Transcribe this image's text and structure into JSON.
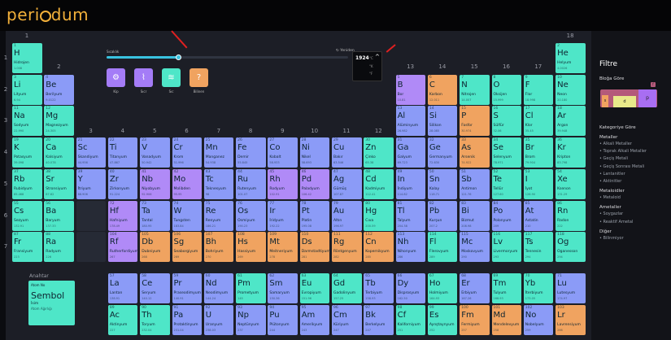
{
  "app": {
    "logo_prefix": "peri",
    "logo_suffix": "dum",
    "logo_char": "o"
  },
  "colors": {
    "alkali": "#4ee6c8",
    "alkaline": "#4ee6c8",
    "transition": "#7c8ef5",
    "post": "#7c8ef5",
    "metalloid": "#a86ef2",
    "nonmetal": "#5fb0f5",
    "halogen": "#4ee6c8",
    "noble": "#4ee6c8",
    "lanthanide": "#4ee6c8",
    "actinide": "#4ee6c8",
    "orange": "#f0a360",
    "purple": "#b08af7",
    "blue": "#8b9bf7"
  },
  "timeline": {
    "left_label": "Sıcaklık",
    "right_label": "Yeniden",
    "year": "1924",
    "unit_c": "°C",
    "unit_k": "°K",
    "unit_f": "°F",
    "level": 0.3
  },
  "view_buttons": [
    {
      "label": "Kip",
      "icon": "⚙",
      "color": "#a47cf7"
    },
    {
      "label": "Sıcr",
      "icon": "⌇",
      "color": "#a47cf7"
    },
    {
      "label": "Sıc",
      "icon": "≋",
      "color": "#4ee6c8"
    },
    {
      "label": "Bilinen",
      "icon": "?",
      "color": "#f0a360"
    }
  ],
  "groups": [
    "1",
    "2",
    "3",
    "4",
    "5",
    "6",
    "7",
    "8",
    "9",
    "10",
    "11",
    "12",
    "13",
    "14",
    "15",
    "16",
    "17",
    "18"
  ],
  "periods": [
    "1",
    "2",
    "3",
    "4",
    "5",
    "6",
    "7"
  ],
  "elements": [
    {
      "n": "1",
      "s": "H",
      "name": "Hidrojen",
      "m": "1.008",
      "r": 0,
      "c": 0,
      "k": "t"
    },
    {
      "n": "2",
      "s": "He",
      "name": "Helyum",
      "m": "4.0026",
      "r": 0,
      "c": 17,
      "k": "t"
    },
    {
      "n": "3",
      "s": "Li",
      "name": "Lityum",
      "m": "6.94",
      "r": 1,
      "c": 0,
      "k": "t"
    },
    {
      "n": "4",
      "s": "Be",
      "name": "Berilyum",
      "m": "9.0122",
      "r": 1,
      "c": 1,
      "k": "b"
    },
    {
      "n": "5",
      "s": "B",
      "name": "Bor",
      "m": "10.81",
      "r": 1,
      "c": 12,
      "k": "p"
    },
    {
      "n": "6",
      "s": "C",
      "name": "Karbon",
      "m": "12.011",
      "r": 1,
      "c": 13,
      "k": "o"
    },
    {
      "n": "7",
      "s": "N",
      "name": "Nitrojen",
      "m": "14.007",
      "r": 1,
      "c": 14,
      "k": "t"
    },
    {
      "n": "8",
      "s": "O",
      "name": "Oksijen",
      "m": "15.999",
      "r": 1,
      "c": 15,
      "k": "t"
    },
    {
      "n": "9",
      "s": "F",
      "name": "Flor",
      "m": "18.998",
      "r": 1,
      "c": 16,
      "k": "t"
    },
    {
      "n": "10",
      "s": "Ne",
      "name": "Neon",
      "m": "20.180",
      "r": 1,
      "c": 17,
      "k": "t"
    },
    {
      "n": "11",
      "s": "Na",
      "name": "Sodyum",
      "m": "22.990",
      "r": 2,
      "c": 0,
      "k": "t"
    },
    {
      "n": "12",
      "s": "Mg",
      "name": "Magnezyum",
      "m": "24.305",
      "r": 2,
      "c": 1,
      "k": "t"
    },
    {
      "n": "13",
      "s": "Al",
      "name": "Alüminyum",
      "m": "26.982",
      "r": 2,
      "c": 12,
      "k": "b"
    },
    {
      "n": "14",
      "s": "Si",
      "name": "Silikon",
      "m": "28.085",
      "r": 2,
      "c": 13,
      "k": "b"
    },
    {
      "n": "15",
      "s": "P",
      "name": "Fosfor",
      "m": "30.974",
      "r": 2,
      "c": 14,
      "k": "o"
    },
    {
      "n": "16",
      "s": "S",
      "name": "Sülfür",
      "m": "32.06",
      "r": 2,
      "c": 15,
      "k": "t"
    },
    {
      "n": "17",
      "s": "Cl",
      "name": "Klor",
      "m": "35.45",
      "r": 2,
      "c": 16,
      "k": "t"
    },
    {
      "n": "18",
      "s": "Ar",
      "name": "Argon",
      "m": "39.948",
      "r": 2,
      "c": 17,
      "k": "t"
    },
    {
      "n": "19",
      "s": "K",
      "name": "Potasyum",
      "m": "39.098",
      "r": 3,
      "c": 0,
      "k": "t"
    },
    {
      "n": "20",
      "s": "Ca",
      "name": "Kalsiyum",
      "m": "40.078",
      "r": 3,
      "c": 1,
      "k": "t"
    },
    {
      "n": "21",
      "s": "Sc",
      "name": "Skandiyum",
      "m": "44.956",
      "r": 3,
      "c": 2,
      "k": "b"
    },
    {
      "n": "22",
      "s": "Ti",
      "name": "Titanyum",
      "m": "47.867",
      "r": 3,
      "c": 3,
      "k": "b"
    },
    {
      "n": "23",
      "s": "V",
      "name": "Vanadyum",
      "m": "50.942",
      "r": 3,
      "c": 4,
      "k": "b"
    },
    {
      "n": "24",
      "s": "Cr",
      "name": "Krom",
      "m": "51.996",
      "r": 3,
      "c": 5,
      "k": "b"
    },
    {
      "n": "25",
      "s": "Mn",
      "name": "Manganez",
      "m": "54.938",
      "r": 3,
      "c": 6,
      "k": "b"
    },
    {
      "n": "26",
      "s": "Fe",
      "name": "Demir",
      "m": "55.845",
      "r": 3,
      "c": 7,
      "k": "b"
    },
    {
      "n": "27",
      "s": "Co",
      "name": "Kobalt",
      "m": "58.933",
      "r": 3,
      "c": 8,
      "k": "b"
    },
    {
      "n": "28",
      "s": "Ni",
      "name": "Nikel",
      "m": "58.693",
      "r": 3,
      "c": 9,
      "k": "b"
    },
    {
      "n": "29",
      "s": "Cu",
      "name": "Bakır",
      "m": "63.546",
      "r": 3,
      "c": 10,
      "k": "b"
    },
    {
      "n": "30",
      "s": "Zn",
      "name": "Çinko",
      "m": "65.38",
      "r": 3,
      "c": 11,
      "k": "t"
    },
    {
      "n": "31",
      "s": "Ga",
      "name": "Galyum",
      "m": "69.723",
      "r": 3,
      "c": 12,
      "k": "b"
    },
    {
      "n": "32",
      "s": "Ge",
      "name": "Germanyum",
      "m": "72.630",
      "r": 3,
      "c": 13,
      "k": "b"
    },
    {
      "n": "33",
      "s": "As",
      "name": "Arsenik",
      "m": "74.922",
      "r": 3,
      "c": 14,
      "k": "o"
    },
    {
      "n": "34",
      "s": "Se",
      "name": "Selenyum",
      "m": "78.971",
      "r": 3,
      "c": 15,
      "k": "t"
    },
    {
      "n": "35",
      "s": "Br",
      "name": "Brom",
      "m": "79.904",
      "r": 3,
      "c": 16,
      "k": "t"
    },
    {
      "n": "36",
      "s": "Kr",
      "name": "Kripton",
      "m": "83.798",
      "r": 3,
      "c": 17,
      "k": "t"
    },
    {
      "n": "37",
      "s": "Rb",
      "name": "Rubidyum",
      "m": "85.468",
      "r": 4,
      "c": 0,
      "k": "t"
    },
    {
      "n": "38",
      "s": "Sr",
      "name": "Stronsiyum",
      "m": "87.62",
      "r": 4,
      "c": 1,
      "k": "t"
    },
    {
      "n": "39",
      "s": "Y",
      "name": "İtriyum",
      "m": "88.906",
      "r": 4,
      "c": 2,
      "k": "b"
    },
    {
      "n": "40",
      "s": "Zr",
      "name": "Zirkonyum",
      "m": "91.224",
      "r": 4,
      "c": 3,
      "k": "b"
    },
    {
      "n": "41",
      "s": "Nb",
      "name": "Niyobyum",
      "m": "92.906",
      "r": 4,
      "c": 4,
      "k": "p"
    },
    {
      "n": "42",
      "s": "Mo",
      "name": "Molibden",
      "m": "95.95",
      "r": 4,
      "c": 5,
      "k": "p"
    },
    {
      "n": "43",
      "s": "Tc",
      "name": "Teknesyum",
      "m": "98",
      "r": 4,
      "c": 6,
      "k": "b"
    },
    {
      "n": "44",
      "s": "Ru",
      "name": "Rutenyum",
      "m": "101.07",
      "r": 4,
      "c": 7,
      "k": "b"
    },
    {
      "n": "45",
      "s": "Rh",
      "name": "Rodyum",
      "m": "102.91",
      "r": 4,
      "c": 8,
      "k": "p"
    },
    {
      "n": "46",
      "s": "Pd",
      "name": "Paladyum",
      "m": "106.42",
      "r": 4,
      "c": 9,
      "k": "p"
    },
    {
      "n": "47",
      "s": "Ag",
      "name": "Gümüş",
      "m": "107.87",
      "r": 4,
      "c": 10,
      "k": "b"
    },
    {
      "n": "48",
      "s": "Cd",
      "name": "Kadmiyum",
      "m": "112.41",
      "r": 4,
      "c": 11,
      "k": "t"
    },
    {
      "n": "49",
      "s": "In",
      "name": "İndiyum",
      "m": "114.82",
      "r": 4,
      "c": 12,
      "k": "b"
    },
    {
      "n": "50",
      "s": "Sn",
      "name": "Kalay",
      "m": "118.71",
      "r": 4,
      "c": 13,
      "k": "b"
    },
    {
      "n": "51",
      "s": "Sb",
      "name": "Antimon",
      "m": "121.76",
      "r": 4,
      "c": 14,
      "k": "b"
    },
    {
      "n": "52",
      "s": "Te",
      "name": "Tellür",
      "m": "127.60",
      "r": 4,
      "c": 15,
      "k": "t"
    },
    {
      "n": "53",
      "s": "I",
      "name": "İyot",
      "m": "126.90",
      "r": 4,
      "c": 16,
      "k": "t"
    },
    {
      "n": "54",
      "s": "Xe",
      "name": "Ksenon",
      "m": "131.29",
      "r": 4,
      "c": 17,
      "k": "t"
    },
    {
      "n": "55",
      "s": "Cs",
      "name": "Sezyum",
      "m": "132.91",
      "r": 5,
      "c": 0,
      "k": "t"
    },
    {
      "n": "56",
      "s": "Ba",
      "name": "Baryum",
      "m": "137.33",
      "r": 5,
      "c": 1,
      "k": "t"
    },
    {
      "n": "72",
      "s": "Hf",
      "name": "Hafniyum",
      "m": "178.49",
      "r": 5,
      "c": 3,
      "k": "p"
    },
    {
      "n": "73",
      "s": "Ta",
      "name": "Tantal",
      "m": "180.95",
      "r": 5,
      "c": 4,
      "k": "b"
    },
    {
      "n": "74",
      "s": "W",
      "name": "Tungsten",
      "m": "183.84",
      "r": 5,
      "c": 5,
      "k": "b"
    },
    {
      "n": "75",
      "s": "Re",
      "name": "Renyum",
      "m": "186.21",
      "r": 5,
      "c": 6,
      "k": "b"
    },
    {
      "n": "76",
      "s": "Os",
      "name": "Osmiyum",
      "m": "190.23",
      "r": 5,
      "c": 7,
      "k": "b"
    },
    {
      "n": "77",
      "s": "Ir",
      "name": "İridyum",
      "m": "192.22",
      "r": 5,
      "c": 8,
      "k": "b"
    },
    {
      "n": "78",
      "s": "Pt",
      "name": "Platin",
      "m": "195.08",
      "r": 5,
      "c": 9,
      "k": "b"
    },
    {
      "n": "79",
      "s": "Au",
      "name": "Altın",
      "m": "196.97",
      "r": 5,
      "c": 10,
      "k": "b"
    },
    {
      "n": "80",
      "s": "Hg",
      "name": "Cıva",
      "m": "200.59",
      "r": 5,
      "c": 11,
      "k": "t"
    },
    {
      "n": "81",
      "s": "Tl",
      "name": "Talyum",
      "m": "204.38",
      "r": 5,
      "c": 12,
      "k": "b"
    },
    {
      "n": "82",
      "s": "Pb",
      "name": "Kurşun",
      "m": "207.2",
      "r": 5,
      "c": 13,
      "k": "b"
    },
    {
      "n": "83",
      "s": "Bi",
      "name": "Bizmut",
      "m": "208.98",
      "r": 5,
      "c": 14,
      "k": "b"
    },
    {
      "n": "84",
      "s": "Po",
      "name": "Polonyum",
      "m": "209",
      "r": 5,
      "c": 15,
      "k": "b"
    },
    {
      "n": "85",
      "s": "At",
      "name": "Astatin",
      "m": "210",
      "r": 5,
      "c": 16,
      "k": "b"
    },
    {
      "n": "86",
      "s": "Rn",
      "name": "Radon",
      "m": "222",
      "r": 5,
      "c": 17,
      "k": "t"
    },
    {
      "n": "87",
      "s": "Fr",
      "name": "Fransiyum",
      "m": "223",
      "r": 6,
      "c": 0,
      "k": "t"
    },
    {
      "n": "88",
      "s": "Ra",
      "name": "Radyum",
      "m": "226",
      "r": 6,
      "c": 1,
      "k": "t"
    },
    {
      "n": "104",
      "s": "Rf",
      "name": "Rutherfordiyum",
      "m": "267",
      "r": 6,
      "c": 3,
      "k": "p"
    },
    {
      "n": "105",
      "s": "Db",
      "name": "Dubniyum",
      "m": "268",
      "r": 6,
      "c": 4,
      "k": "o"
    },
    {
      "n": "106",
      "s": "Sg",
      "name": "Seaborgiyum",
      "m": "269",
      "r": 6,
      "c": 5,
      "k": "o"
    },
    {
      "n": "107",
      "s": "Bh",
      "name": "Bohriyum",
      "m": "270",
      "r": 6,
      "c": 6,
      "k": "o"
    },
    {
      "n": "108",
      "s": "Hs",
      "name": "Hassiyum",
      "m": "269",
      "r": 6,
      "c": 7,
      "k": "o"
    },
    {
      "n": "109",
      "s": "Mt",
      "name": "Meitneriyum",
      "m": "278",
      "r": 6,
      "c": 8,
      "k": "o"
    },
    {
      "n": "110",
      "s": "Ds",
      "name": "Darmstadtiyum",
      "m": "281",
      "r": 6,
      "c": 9,
      "k": "o"
    },
    {
      "n": "111",
      "s": "Rg",
      "name": "Röntgenyum",
      "m": "282",
      "r": 6,
      "c": 10,
      "k": "o"
    },
    {
      "n": "112",
      "s": "Cn",
      "name": "Kopernikyum",
      "m": "285",
      "r": 6,
      "c": 11,
      "k": "o"
    },
    {
      "n": "113",
      "s": "Nh",
      "name": "Nihonyum",
      "m": "286",
      "r": 6,
      "c": 12,
      "k": "b"
    },
    {
      "n": "114",
      "s": "Fl",
      "name": "Flerovyum",
      "m": "289",
      "r": 6,
      "c": 13,
      "k": "t"
    },
    {
      "n": "115",
      "s": "Mc",
      "name": "Moskovyum",
      "m": "290",
      "r": 6,
      "c": 14,
      "k": "b"
    },
    {
      "n": "116",
      "s": "Lv",
      "name": "Livermoryum",
      "m": "293",
      "r": 6,
      "c": 15,
      "k": "t"
    },
    {
      "n": "117",
      "s": "Ts",
      "name": "Tennesin",
      "m": "294",
      "r": 6,
      "c": 16,
      "k": "t"
    },
    {
      "n": "118",
      "s": "Og",
      "name": "Oganesson",
      "m": "294",
      "r": 6,
      "c": 17,
      "k": "t"
    },
    {
      "n": "57",
      "s": "La",
      "name": "Lantan",
      "m": "138.91",
      "r": 7,
      "c": 3,
      "k": "b"
    },
    {
      "n": "58",
      "s": "Ce",
      "name": "Seryum",
      "m": "140.12",
      "r": 7,
      "c": 4,
      "k": "b"
    },
    {
      "n": "59",
      "s": "Pr",
      "name": "Praseodimyum",
      "m": "140.91",
      "r": 7,
      "c": 5,
      "k": "b"
    },
    {
      "n": "60",
      "s": "Nd",
      "name": "Neodimyum",
      "m": "144.24",
      "r": 7,
      "c": 6,
      "k": "b"
    },
    {
      "n": "61",
      "s": "Pm",
      "name": "Prometyum",
      "m": "145",
      "r": 7,
      "c": 7,
      "k": "t"
    },
    {
      "n": "62",
      "s": "Sm",
      "name": "Samaryum",
      "m": "150.36",
      "r": 7,
      "c": 8,
      "k": "b"
    },
    {
      "n": "63",
      "s": "Eu",
      "name": "Evropiyum",
      "m": "151.96",
      "r": 7,
      "c": 9,
      "k": "t"
    },
    {
      "n": "64",
      "s": "Gd",
      "name": "Gadolinyum",
      "m": "157.25",
      "r": 7,
      "c": 10,
      "k": "t"
    },
    {
      "n": "65",
      "s": "Tb",
      "name": "Terbiyum",
      "m": "158.93",
      "r": 7,
      "c": 11,
      "k": "b"
    },
    {
      "n": "66",
      "s": "Dy",
      "name": "Disprosyum",
      "m": "162.50",
      "r": 7,
      "c": 12,
      "k": "b"
    },
    {
      "n": "67",
      "s": "Ho",
      "name": "Holmiyum",
      "m": "164.93",
      "r": 7,
      "c": 13,
      "k": "t"
    },
    {
      "n": "68",
      "s": "Er",
      "name": "Erbiyum",
      "m": "167.26",
      "r": 7,
      "c": 14,
      "k": "b"
    },
    {
      "n": "69",
      "s": "Tm",
      "name": "Tulyum",
      "m": "168.93",
      "r": 7,
      "c": 15,
      "k": "t"
    },
    {
      "n": "70",
      "s": "Yb",
      "name": "İterbiyum",
      "m": "173.05",
      "r": 7,
      "c": 16,
      "k": "t"
    },
    {
      "n": "71",
      "s": "Lu",
      "name": "Lutesyum",
      "m": "174.97",
      "r": 7,
      "c": 17,
      "k": "b"
    },
    {
      "n": "89",
      "s": "Ac",
      "name": "Aktinyum",
      "m": "227",
      "r": 8,
      "c": 3,
      "k": "t"
    },
    {
      "n": "90",
      "s": "Th",
      "name": "Toryum",
      "m": "232.04",
      "r": 8,
      "c": 4,
      "k": "t"
    },
    {
      "n": "91",
      "s": "Pa",
      "name": "Protaktinyum",
      "m": "231.04",
      "r": 8,
      "c": 5,
      "k": "b"
    },
    {
      "n": "92",
      "s": "U",
      "name": "Uranyum",
      "m": "238.03",
      "r": 8,
      "c": 6,
      "k": "b"
    },
    {
      "n": "93",
      "s": "Np",
      "name": "Neptünyum",
      "m": "237",
      "r": 8,
      "c": 7,
      "k": "b"
    },
    {
      "n": "94",
      "s": "Pu",
      "name": "Plütonyum",
      "m": "244",
      "r": 8,
      "c": 8,
      "k": "b"
    },
    {
      "n": "95",
      "s": "Am",
      "name": "Amerikyum",
      "m": "243",
      "r": 8,
      "c": 9,
      "k": "b"
    },
    {
      "n": "96",
      "s": "Cm",
      "name": "Küriyum",
      "m": "247",
      "r": 8,
      "c": 10,
      "k": "b"
    },
    {
      "n": "97",
      "s": "Bk",
      "name": "Berkelyum",
      "m": "247",
      "r": 8,
      "c": 11,
      "k": "b"
    },
    {
      "n": "98",
      "s": "Cf",
      "name": "Kaliforniyum",
      "m": "251",
      "r": 8,
      "c": 12,
      "k": "t"
    },
    {
      "n": "99",
      "s": "Es",
      "name": "Aynştaynyum",
      "m": "252",
      "r": 8,
      "c": 13,
      "k": "t"
    },
    {
      "n": "100",
      "s": "Fm",
      "name": "Fermiyum",
      "m": "257",
      "r": 8,
      "c": 14,
      "k": "o"
    },
    {
      "n": "101",
      "s": "Md",
      "name": "Mendelevyum",
      "m": "258",
      "r": 8,
      "c": 15,
      "k": "o"
    },
    {
      "n": "102",
      "s": "No",
      "name": "Nobelyum",
      "m": "259",
      "r": 8,
      "c": 16,
      "k": "b"
    },
    {
      "n": "103",
      "s": "Lr",
      "name": "Lavrensiyum",
      "m": "266",
      "r": 8,
      "c": 17,
      "k": "o"
    }
  ],
  "key": {
    "title": "Anahtar",
    "num": "Atom No",
    "sym": "Sembol",
    "name": "İsim",
    "mass": "Atom Ağırlığı"
  },
  "filter": {
    "title": "Filtre",
    "block_title": "Bloğa Göre",
    "blocks": [
      "s",
      "d",
      "p",
      "f"
    ],
    "cat_title": "Kategoriye Göre",
    "metals_title": "Metaller",
    "metals": [
      "Alkali Metaller",
      "Toprak Alkali Metaller",
      "Geçiş Metali",
      "Geçiş Sonrası Metali",
      "Lantanitler",
      "Aktinitler"
    ],
    "metalloids_title": "Metaloidler",
    "metalloids": [
      "Metaloid"
    ],
    "nonmetals_title": "Ametaller",
    "nonmetals": [
      "Soygazlar",
      "Reaktif Ametal"
    ],
    "other_title": "Diğer",
    "other": [
      "Bilinmiyor"
    ]
  }
}
